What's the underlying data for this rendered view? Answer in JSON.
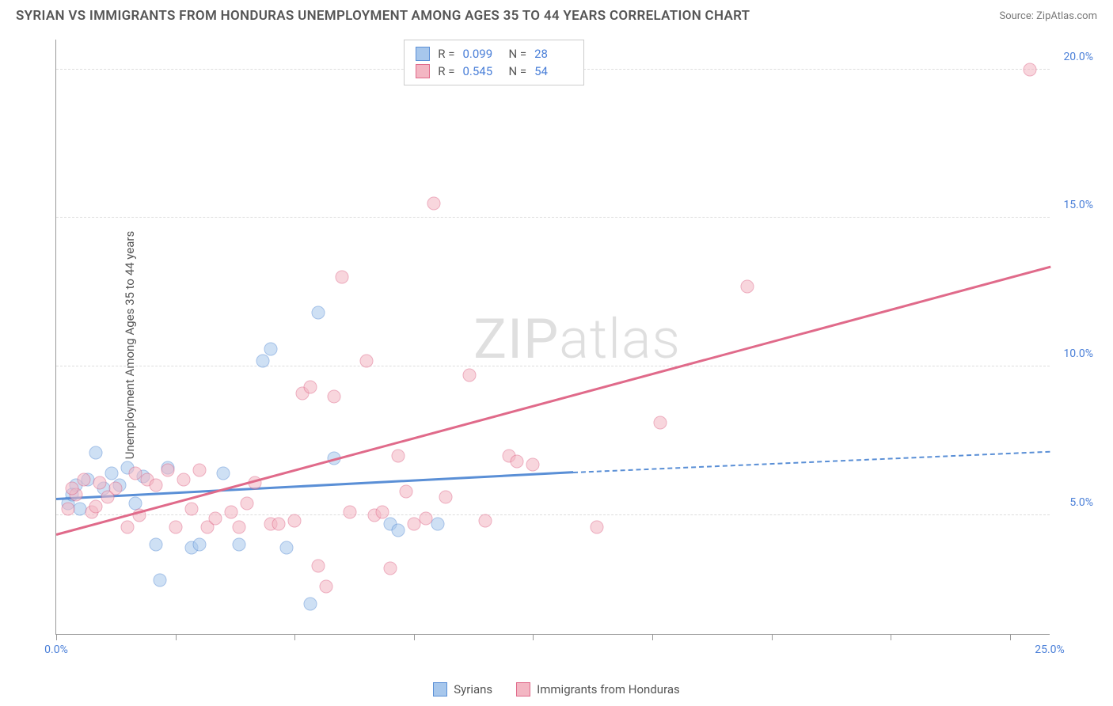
{
  "title": "SYRIAN VS IMMIGRANTS FROM HONDURAS UNEMPLOYMENT AMONG AGES 35 TO 44 YEARS CORRELATION CHART",
  "source": "Source: ZipAtlas.com",
  "ylabel": "Unemployment Among Ages 35 to 44 years",
  "watermark": "ZIPatlas",
  "xlim": [
    0,
    25
  ],
  "ylim": [
    1,
    21
  ],
  "x_ticks": [
    0,
    3,
    6,
    9,
    12,
    15,
    18,
    21,
    24
  ],
  "x_tick_labels": {
    "0": "0.0%",
    "25": "25.0%"
  },
  "y_gridlines": [
    5,
    10,
    15,
    20
  ],
  "y_tick_labels": {
    "5": "5.0%",
    "10": "10.0%",
    "15": "15.0%",
    "20": "20.0%"
  },
  "series": [
    {
      "name": "Syrians",
      "fill": "#a7c7ec",
      "stroke": "#5a8fd6",
      "R": "0.099",
      "N": "28",
      "trend": {
        "x1": 0,
        "y1": 5.5,
        "x2": 13,
        "y2": 6.4,
        "x2_dash": 25,
        "y2_dash": 7.1
      },
      "points": [
        [
          0.3,
          5.4
        ],
        [
          0.5,
          6.0
        ],
        [
          0.6,
          5.2
        ],
        [
          0.8,
          6.2
        ],
        [
          1.0,
          7.1
        ],
        [
          1.2,
          5.9
        ],
        [
          1.4,
          6.4
        ],
        [
          1.6,
          6.0
        ],
        [
          1.8,
          6.6
        ],
        [
          2.0,
          5.4
        ],
        [
          2.2,
          6.3
        ],
        [
          2.5,
          4.0
        ],
        [
          2.6,
          2.8
        ],
        [
          2.8,
          6.6
        ],
        [
          3.4,
          3.9
        ],
        [
          3.6,
          4.0
        ],
        [
          4.2,
          6.4
        ],
        [
          4.6,
          4.0
        ],
        [
          5.2,
          10.2
        ],
        [
          5.4,
          10.6
        ],
        [
          5.8,
          3.9
        ],
        [
          6.4,
          2.0
        ],
        [
          6.6,
          11.8
        ],
        [
          7.0,
          6.9
        ],
        [
          8.4,
          4.7
        ],
        [
          8.6,
          4.5
        ],
        [
          9.6,
          4.7
        ],
        [
          0.4,
          5.7
        ]
      ]
    },
    {
      "name": "Immigrants from Honduras",
      "fill": "#f3b6c3",
      "stroke": "#e06a8a",
      "R": "0.545",
      "N": "54",
      "trend": {
        "x1": 0,
        "y1": 4.3,
        "x2": 25,
        "y2": 13.3
      },
      "points": [
        [
          0.5,
          5.7
        ],
        [
          0.7,
          6.2
        ],
        [
          0.9,
          5.1
        ],
        [
          1.1,
          6.1
        ],
        [
          1.3,
          5.6
        ],
        [
          1.5,
          5.9
        ],
        [
          1.8,
          4.6
        ],
        [
          2.0,
          6.4
        ],
        [
          2.1,
          5.0
        ],
        [
          2.3,
          6.2
        ],
        [
          2.5,
          6.0
        ],
        [
          2.8,
          6.5
        ],
        [
          3.0,
          4.6
        ],
        [
          3.2,
          6.2
        ],
        [
          3.4,
          5.2
        ],
        [
          3.6,
          6.5
        ],
        [
          3.8,
          4.6
        ],
        [
          4.0,
          4.9
        ],
        [
          4.4,
          5.1
        ],
        [
          4.6,
          4.6
        ],
        [
          4.8,
          5.4
        ],
        [
          5.0,
          6.1
        ],
        [
          5.4,
          4.7
        ],
        [
          5.6,
          4.7
        ],
        [
          6.0,
          4.8
        ],
        [
          6.2,
          9.1
        ],
        [
          6.4,
          9.3
        ],
        [
          6.6,
          3.3
        ],
        [
          6.8,
          2.6
        ],
        [
          7.0,
          9.0
        ],
        [
          7.2,
          13.0
        ],
        [
          7.4,
          5.1
        ],
        [
          7.8,
          10.2
        ],
        [
          8.0,
          5.0
        ],
        [
          8.2,
          5.1
        ],
        [
          8.4,
          3.2
        ],
        [
          8.6,
          7.0
        ],
        [
          8.8,
          5.8
        ],
        [
          9.0,
          4.7
        ],
        [
          9.3,
          4.9
        ],
        [
          9.5,
          15.5
        ],
        [
          9.8,
          5.6
        ],
        [
          10.4,
          9.7
        ],
        [
          10.8,
          4.8
        ],
        [
          11.4,
          7.0
        ],
        [
          11.6,
          6.8
        ],
        [
          12.0,
          6.7
        ],
        [
          13.6,
          4.6
        ],
        [
          15.2,
          8.1
        ],
        [
          17.4,
          12.7
        ],
        [
          24.5,
          20.0
        ],
        [
          0.3,
          5.2
        ],
        [
          0.4,
          5.9
        ],
        [
          1.0,
          5.3
        ]
      ]
    }
  ],
  "background_color": "#ffffff",
  "grid_color": "#dddddd",
  "axis_color": "#999999",
  "tick_label_color": "#4a7fd8"
}
